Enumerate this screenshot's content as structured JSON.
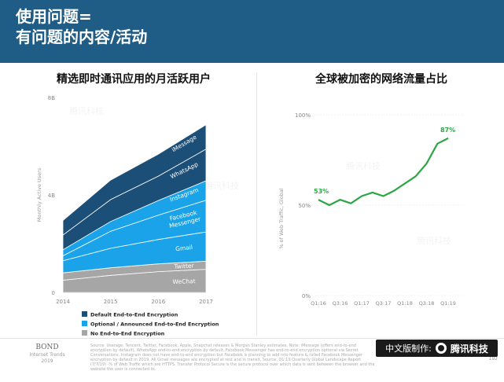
{
  "header": {
    "line1": "使用问题=",
    "line2": "有问题的内容/活动"
  },
  "colors": {
    "header_bg": "#1f5c86",
    "default_e2e": "#1c4f78",
    "optional_e2e": "#1aa3e8",
    "no_e2e": "#a6a6a6",
    "line_green": "#2ca645"
  },
  "chart_data": [
    {
      "type": "area",
      "title": "精选即时通讯应用的月活跃用户",
      "ylabel": "Monthly Active Users",
      "xlabel": "",
      "x": [
        2014,
        2015,
        2016,
        2017
      ],
      "x_tick_labels": [
        "2014",
        "2015",
        "2016",
        "2017"
      ],
      "y_tick_labels": [
        "0",
        "4B",
        "8B"
      ],
      "ylim": [
        0,
        8
      ],
      "stacked": true,
      "series": [
        {
          "name": "WeChat",
          "group": "No End-to-End Encryption",
          "values": [
            0.5,
            0.7,
            0.85,
            0.95
          ]
        },
        {
          "name": "Twitter",
          "group": "No End-to-End Encryption",
          "values": [
            0.3,
            0.31,
            0.32,
            0.33
          ]
        },
        {
          "name": "Gmail",
          "group": "Optional / Announced End-to-End Encryption",
          "values": [
            0.5,
            0.8,
            1.0,
            1.2
          ]
        },
        {
          "name": "Facebook Messenger",
          "group": "Optional / Announced End-to-End Encryption",
          "values": [
            0.2,
            0.7,
            1.0,
            1.3
          ]
        },
        {
          "name": "Instagram",
          "group": "Optional / Announced End-to-End Encryption",
          "values": [
            0.25,
            0.4,
            0.6,
            0.8
          ]
        },
        {
          "name": "WhatsApp",
          "group": "Default End-to-End Encryption",
          "values": [
            0.6,
            0.9,
            1.0,
            1.3
          ]
        },
        {
          "name": "iMessage",
          "group": "Default End-to-End Encryption",
          "values": [
            0.6,
            0.8,
            0.9,
            1.0
          ]
        }
      ],
      "legend": [
        {
          "label": "Default End-to-End Encryption",
          "color": "#1c4f78"
        },
        {
          "label": "Optional / Announced End-to-End Encryption",
          "color": "#1aa3e8"
        },
        {
          "label": "No End-to-End Encryption",
          "color": "#a6a6a6"
        }
      ],
      "legend_position": "bottom-left",
      "grid": false
    },
    {
      "type": "line",
      "title": "全球被加密的网络流量占比",
      "ylabel": "% of Web Traffic, Global",
      "xlabel": "",
      "categories": [
        "Q1:16",
        "Q2:16",
        "Q3:16",
        "Q4:16",
        "Q1:17",
        "Q2:17",
        "Q3:17",
        "Q4:17",
        "Q1:18",
        "Q2:18",
        "Q3:18",
        "Q4:18",
        "Q1:19"
      ],
      "x_tick_labels": [
        "Q1:16",
        "Q3:16",
        "Q1:17",
        "Q3:17",
        "Q1:18",
        "Q3:18",
        "Q1:19"
      ],
      "y_tick_labels": [
        "0%",
        "50%",
        "100%"
      ],
      "ylim": [
        0,
        100
      ],
      "series": [
        {
          "values": [
            53,
            50,
            53,
            51,
            55,
            57,
            55,
            58,
            62,
            66,
            73,
            84,
            87
          ]
        }
      ],
      "annotations": {
        "first": "53%",
        "last": "87%"
      },
      "grid": false
    }
  ],
  "watermark": "腾讯科技",
  "footer": {
    "bond_name": "BOND",
    "bond_sub": "Internet Trends 2019",
    "source_text": "Source: Userage: Tencent, Twitter, Facebook, Apple, Snapchat releases & Morgan Stanley estimates. Note: iMessage (offers end-to-end encryption by default), WhatsApp end-to-end encryption by default. Facebook Messenger has end-to-end encryption optional via Secret Conversations. Instagram does not have end-to-end encryption but Facebook is planning to add into feature & rolled Facebook Messenger encryption by default in 2019. All Gmail messages are encrypted at rest and in transit. Source: Q1:19 Quarterly Global Landscape Report (7/7/19) -% of Web Traffic which are HTTPS. Transfer Protocol Secure is the secure protocol over which data is sent between the browser and the website the user is connected to.",
    "page_number": "192"
  },
  "badge": {
    "prefix": "中文版制作:",
    "brand": "腾讯科技"
  }
}
